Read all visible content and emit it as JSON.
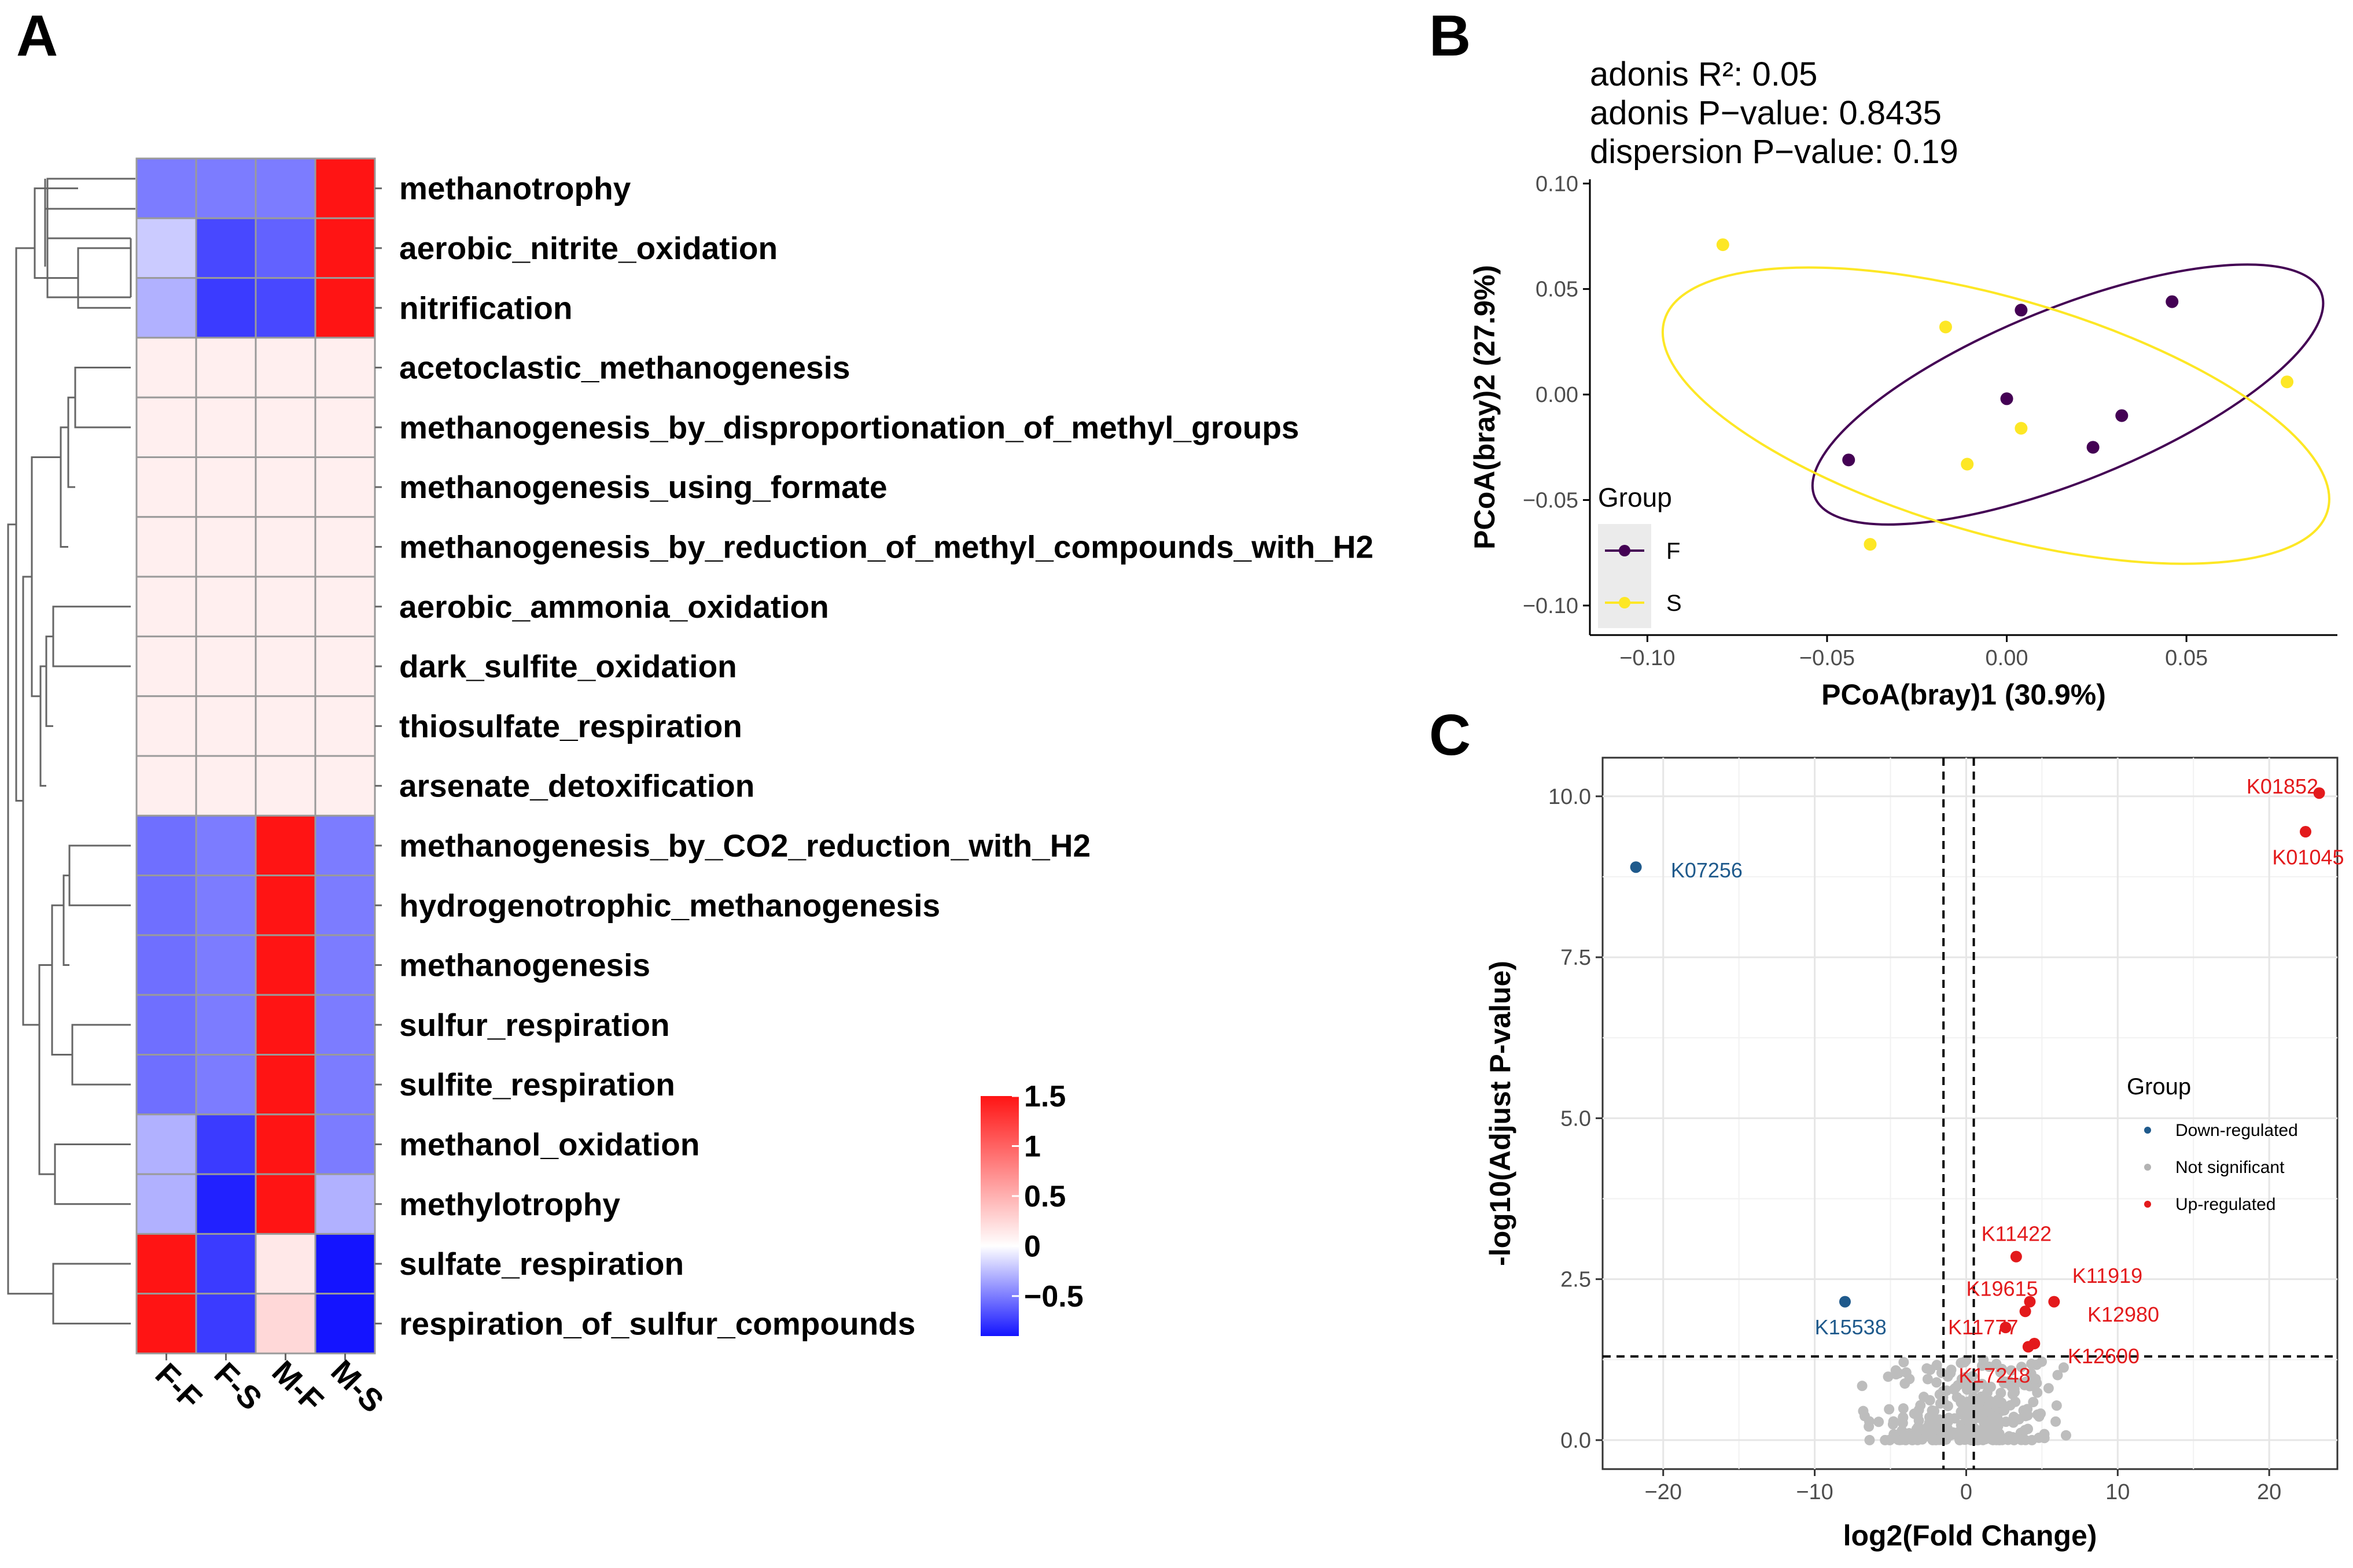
{
  "panels": {
    "a": "A",
    "b": "B",
    "c": "C"
  },
  "heatmap": {
    "columns": [
      "F-F",
      "F-S",
      "M-F",
      "M-S"
    ],
    "rows": [
      "methanotrophy",
      "aerobic_nitrite_oxidation",
      "nitrification",
      "acetoclastic_methanogenesis",
      "methanogenesis_by_disproportionation_of_methyl_groups",
      "methanogenesis_using_formate",
      "methanogenesis_by_reduction_of_methyl_compounds_with_H2",
      "aerobic_ammonia_oxidation",
      "dark_sulfite_oxidation",
      "thiosulfate_respiration",
      "arsenate_detoxification",
      "methanogenesis_by_CO2_reduction_with_H2",
      "hydrogenotrophic_methanogenesis",
      "methanogenesis",
      "sulfur_respiration",
      "sulfite_respiration",
      "methanol_oxidation",
      "methylotrophy",
      "sulfate_respiration",
      "respiration_of_sulfur_compounds"
    ],
    "values": [
      [
        -0.5,
        -0.5,
        -0.5,
        1.5
      ],
      [
        -0.2,
        -0.7,
        -0.6,
        1.5
      ],
      [
        -0.3,
        -0.75,
        -0.7,
        1.5
      ],
      [
        0.1,
        0.1,
        0.1,
        0.1
      ],
      [
        0.1,
        0.1,
        0.1,
        0.1
      ],
      [
        0.1,
        0.1,
        0.1,
        0.1
      ],
      [
        0.1,
        0.1,
        0.1,
        0.1
      ],
      [
        0.1,
        0.1,
        0.1,
        0.1
      ],
      [
        0.1,
        0.1,
        0.1,
        0.1
      ],
      [
        0.1,
        0.1,
        0.1,
        0.1
      ],
      [
        0.1,
        0.1,
        0.1,
        0.1
      ],
      [
        -0.55,
        -0.5,
        1.5,
        -0.5
      ],
      [
        -0.55,
        -0.5,
        1.5,
        -0.5
      ],
      [
        -0.55,
        -0.5,
        1.5,
        -0.5
      ],
      [
        -0.55,
        -0.5,
        1.5,
        -0.5
      ],
      [
        -0.55,
        -0.5,
        1.5,
        -0.5
      ],
      [
        -0.3,
        -0.75,
        1.5,
        -0.5
      ],
      [
        -0.3,
        -0.85,
        1.5,
        -0.3
      ],
      [
        1.5,
        -0.75,
        0.15,
        -0.9
      ],
      [
        1.5,
        -0.75,
        0.25,
        -0.9
      ]
    ],
    "colorbar": {
      "ticks": [
        "1.5",
        "1",
        "0.5",
        "0",
        "−0.5"
      ],
      "tick_values": [
        1.5,
        1,
        0.5,
        0,
        -0.5
      ],
      "range": [
        -0.9,
        1.5
      ],
      "colors": {
        "low": "#1414ff",
        "mid": "#ffffff",
        "high": "#ff1414"
      }
    }
  },
  "pcoa": {
    "stats": {
      "line1": "adonis R²: 0.05",
      "line2": "adonis P−value: 0.8435",
      "line3": "dispersion P−value: 0.19"
    },
    "xlabel": "PCoA(bray)1 (30.9%)",
    "ylabel": "PCoA(bray)2 (27.9%)",
    "xlim": [
      -0.116,
      0.092
    ],
    "ylim": [
      -0.114,
      0.102
    ],
    "xticks": [
      "−0.10",
      "−0.05",
      "0.00",
      "0.05"
    ],
    "xtick_values": [
      -0.1,
      -0.05,
      0.0,
      0.05
    ],
    "yticks": [
      "0.10",
      "0.05",
      "0.00",
      "−0.05",
      "−0.10"
    ],
    "ytick_values": [
      0.1,
      0.05,
      0.0,
      -0.05,
      -0.1
    ],
    "legend": {
      "title": "Group",
      "items": [
        {
          "label": "F",
          "color": "#440154"
        },
        {
          "label": "S",
          "color": "#fde725"
        }
      ]
    },
    "groups": [
      {
        "name": "F",
        "color": "#440154",
        "points": [
          [
            0.004,
            0.04
          ],
          [
            0.046,
            0.044
          ],
          [
            0.0,
            -0.002
          ],
          [
            0.032,
            -0.01
          ],
          [
            0.024,
            -0.025
          ],
          [
            -0.044,
            -0.031
          ]
        ],
        "ellipse": {
          "cx": 0.017,
          "cy": 0.0,
          "rx": 0.076,
          "ry": 0.041,
          "angle_deg": 22
        }
      },
      {
        "name": "S",
        "color": "#fde725",
        "points": [
          [
            -0.079,
            0.071
          ],
          [
            -0.017,
            0.032
          ],
          [
            0.078,
            0.006
          ],
          [
            0.004,
            -0.016
          ],
          [
            -0.011,
            -0.033
          ],
          [
            -0.038,
            -0.071
          ]
        ],
        "ellipse": {
          "cx": -0.003,
          "cy": -0.01,
          "rx": 0.096,
          "ry": 0.056,
          "angle_deg": -16
        }
      }
    ]
  },
  "volcano": {
    "xlabel": "log2(Fold Change)",
    "ylabel": "-log10(Adjust P-value)",
    "xlim": [
      -24,
      24.5
    ],
    "ylim": [
      -0.45,
      10.6
    ],
    "xticks": [
      "−20",
      "−10",
      "0",
      "10",
      "20"
    ],
    "xtick_values": [
      -20,
      -10,
      0,
      10,
      20
    ],
    "yticks": [
      "10.0",
      "7.5",
      "5.0",
      "2.5",
      "0.0"
    ],
    "ytick_values": [
      10,
      7.5,
      5,
      2.5,
      0
    ],
    "vlines": [
      -1.5,
      0.5
    ],
    "hline": 1.3,
    "legend": {
      "title": "Group",
      "items": [
        {
          "label": "Down-regulated",
          "color": "#1f5a8c"
        },
        {
          "label": "Not significant",
          "color": "#b3b3b3"
        },
        {
          "label": "Up-regulated",
          "color": "#e31a1c"
        }
      ]
    },
    "labeled_points": [
      {
        "id": "K01852",
        "x": 23.3,
        "y": 10.05,
        "group": "Up-regulated",
        "lx": 18.5,
        "ly": 10.15
      },
      {
        "id": "K01045",
        "x": 22.4,
        "y": 9.45,
        "group": "Up-regulated",
        "lx": 20.2,
        "ly": 9.05
      },
      {
        "id": "K07256",
        "x": -21.8,
        "y": 8.9,
        "group": "Down-regulated",
        "lx": -19.5,
        "ly": 8.85
      },
      {
        "id": "K15538",
        "x": -8.0,
        "y": 2.15,
        "group": "Down-regulated",
        "lx": -10.0,
        "ly": 1.75
      },
      {
        "id": "K11422",
        "x": 3.3,
        "y": 2.85,
        "group": "Up-regulated",
        "lx": 1.0,
        "ly": 3.2
      },
      {
        "id": "K11919",
        "x": 4.2,
        "y": 2.15,
        "group": "Up-regulated",
        "lx": 7.0,
        "ly": 2.55
      },
      {
        "id": "K19615",
        "x": 3.9,
        "y": 2.0,
        "group": "Up-regulated",
        "lx": 0.0,
        "ly": 2.35
      },
      {
        "id": "K12980",
        "x": 5.8,
        "y": 2.15,
        "group": "Up-regulated",
        "lx": 8.0,
        "ly": 1.95
      },
      {
        "id": "K11777",
        "x": 2.6,
        "y": 1.75,
        "group": "Up-regulated",
        "lx": -1.2,
        "ly": 1.75
      },
      {
        "id": "K12600",
        "x": 4.5,
        "y": 1.5,
        "group": "Up-regulated",
        "lx": 6.7,
        "ly": 1.3
      },
      {
        "id": "K17248",
        "x": 4.1,
        "y": 1.45,
        "group": "Up-regulated",
        "lx": -0.5,
        "ly": 1.0
      }
    ]
  }
}
